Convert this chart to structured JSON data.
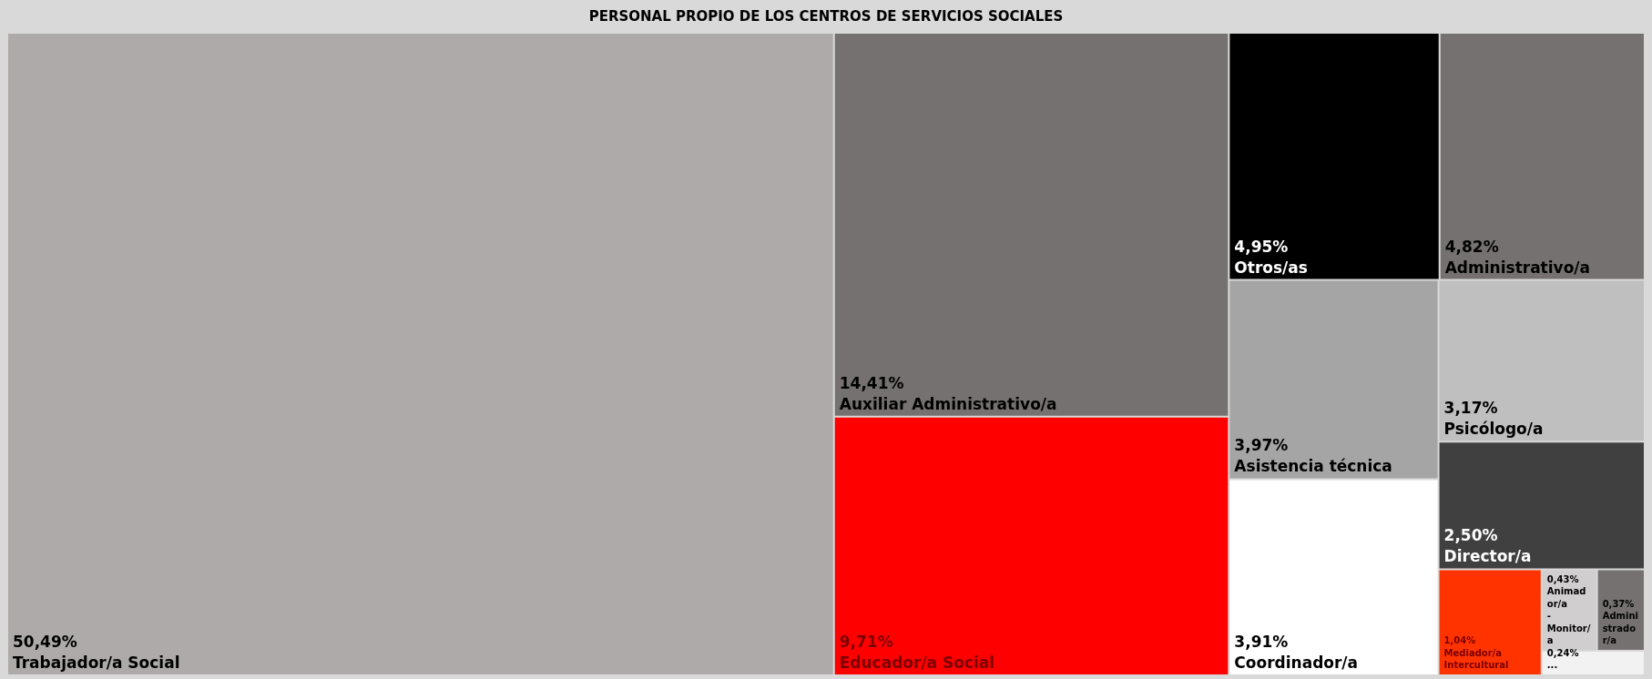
{
  "chart_data": {
    "type": "other",
    "title": "PERSONAL PROPIO DE LOS CENTROS DE SERVICIOS SOCIALES",
    "categories": [
      "Trabajador/a Social",
      "Auxiliar Administrativo/a",
      "Educador/a Social",
      "Otros/as",
      "Administrativo/a",
      "Asistencia técnica",
      "Coordinador/a",
      "Psicólogo/a",
      "Director/a",
      "Mediador/a Intercultural",
      "Animador/a - Monitor/a",
      "Administrador/a",
      "..."
    ],
    "values": [
      50.49,
      14.41,
      9.71,
      4.95,
      4.82,
      3.97,
      3.91,
      3.17,
      2.5,
      1.04,
      0.43,
      0.37,
      0.24
    ],
    "value_labels": [
      "50,49%",
      "14,41%",
      "9,71%",
      "4,95%",
      "4,82%",
      "3,97%",
      "3,91%",
      "3,17%",
      "2,50%",
      "1,04%",
      "0,43%",
      "0,37%",
      "0,24%"
    ],
    "colors": [
      "#aeaaaa",
      "#767171",
      "#ff0000",
      "#000000",
      "#767171",
      "#a5a5a5",
      "#ffffff",
      "#bfbfbf",
      "#404040",
      "#ff3300",
      "#d0cece",
      "#767171",
      "#f2f2f2"
    ]
  }
}
